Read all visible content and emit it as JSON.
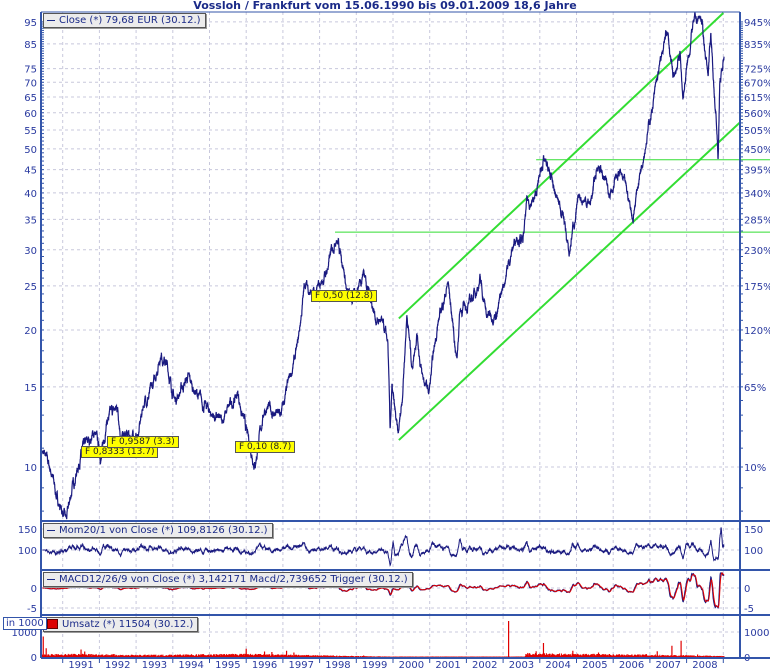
{
  "title": "Vossloh / Frankfurt vom 15.06.1990 bis 09.01.2009 18,6 Jahre",
  "colors": {
    "price": "#1a1a80",
    "channel": "#33dd33",
    "macd_trigger": "#e00000",
    "volume": "#e00000",
    "axis": "#3355aa",
    "grid": "#c8c8dc",
    "annotation_bg": "#ffff00"
  },
  "chart_data": [
    {
      "type": "line",
      "panel": "price",
      "legend": "Close (*) 79,68 EUR (30.12.)",
      "y_scale": "log",
      "ylim": [
        7.2,
        100
      ],
      "xlim": [
        1990.45,
        2009.5
      ],
      "grid": true,
      "left_ticks": [
        "95",
        "85",
        "75",
        "70",
        "65",
        "60",
        "55",
        "50",
        "45",
        "40",
        "35",
        "30",
        "25",
        "20",
        "15",
        "10"
      ],
      "right_ticks": [
        "945%",
        "835%",
        "725%",
        "670%",
        "615%",
        "560%",
        "505%",
        "450%",
        "395%",
        "340%",
        "285%",
        "230%",
        "175%",
        "120%",
        "65%",
        "10%"
      ],
      "series_points": [
        [
          1990.45,
          10.9
        ],
        [
          1990.7,
          9.7
        ],
        [
          1990.85,
          8.5
        ],
        [
          1991.0,
          7.95
        ],
        [
          1991.1,
          7.6
        ],
        [
          1991.25,
          8.9
        ],
        [
          1991.5,
          10.7
        ],
        [
          1991.87,
          11.9
        ],
        [
          1992.05,
          10.5
        ],
        [
          1992.2,
          12.7
        ],
        [
          1992.5,
          13.5
        ],
        [
          1992.6,
          11.6
        ],
        [
          1993.05,
          11.6
        ],
        [
          1993.2,
          13.8
        ],
        [
          1993.45,
          14.8
        ],
        [
          1993.67,
          17.9
        ],
        [
          1993.85,
          16.6
        ],
        [
          1994.05,
          14.0
        ],
        [
          1994.4,
          15.7
        ],
        [
          1994.8,
          13.8
        ],
        [
          1995.3,
          12.5
        ],
        [
          1995.77,
          14.5
        ],
        [
          1996.05,
          11.5
        ],
        [
          1996.24,
          10.2
        ],
        [
          1996.5,
          13.5
        ],
        [
          1996.94,
          12.9
        ],
        [
          1997.14,
          15.0
        ],
        [
          1997.4,
          18.3
        ],
        [
          1997.6,
          25.4
        ],
        [
          1997.87,
          23.6
        ],
        [
          1998.2,
          27.0
        ],
        [
          1998.45,
          32.5
        ],
        [
          1998.64,
          28.2
        ],
        [
          1998.75,
          24.0
        ],
        [
          1998.9,
          23.3
        ],
        [
          1999.2,
          27.1
        ],
        [
          1999.55,
          21.0
        ],
        [
          1999.65,
          21.0
        ],
        [
          1999.86,
          18.7
        ],
        [
          1999.92,
          11.9
        ],
        [
          1999.97,
          14.8
        ],
        [
          2000.14,
          11.5
        ],
        [
          2000.25,
          14.2
        ],
        [
          2000.38,
          21.8
        ],
        [
          2000.52,
          16.6
        ],
        [
          2000.65,
          20.0
        ],
        [
          2000.79,
          15.8
        ],
        [
          2000.98,
          14.5
        ],
        [
          2001.2,
          20.3
        ],
        [
          2001.5,
          25.4
        ],
        [
          2001.74,
          17.2
        ],
        [
          2001.82,
          22.1
        ],
        [
          2002.1,
          22.9
        ],
        [
          2002.37,
          25.8
        ],
        [
          2002.56,
          21.4
        ],
        [
          2002.86,
          22.1
        ],
        [
          2003.1,
          27.1
        ],
        [
          2003.38,
          32.8
        ],
        [
          2003.54,
          31.0
        ],
        [
          2003.65,
          38.0
        ],
        [
          2003.87,
          38.6
        ],
        [
          2004.09,
          47.3
        ],
        [
          2004.25,
          44.2
        ],
        [
          2004.47,
          38.6
        ],
        [
          2004.64,
          36.1
        ],
        [
          2004.8,
          28.9
        ],
        [
          2004.9,
          33.7
        ],
        [
          2005.1,
          39.2
        ],
        [
          2005.38,
          38.0
        ],
        [
          2005.59,
          46.6
        ],
        [
          2005.86,
          40.6
        ],
        [
          2006.19,
          44.2
        ],
        [
          2006.4,
          39.2
        ],
        [
          2006.54,
          35.4
        ],
        [
          2006.68,
          42.1
        ],
        [
          2006.82,
          49.0
        ],
        [
          2007.0,
          57.9
        ],
        [
          2007.22,
          71.9
        ],
        [
          2007.47,
          91.3
        ],
        [
          2007.63,
          70.7
        ],
        [
          2007.82,
          81.0
        ],
        [
          2007.9,
          64.7
        ],
        [
          2008.17,
          93.6
        ],
        [
          2008.39,
          97.0
        ],
        [
          2008.58,
          73.9
        ],
        [
          2008.66,
          86.8
        ],
        [
          2008.83,
          54.1
        ],
        [
          2008.86,
          46.6
        ],
        [
          2008.9,
          68.5
        ],
        [
          2009.02,
          79.68
        ]
      ],
      "trend_channel": {
        "upper": [
          [
            2000.16,
            21.2
          ],
          [
            2009.0,
            99.4
          ]
        ],
        "lower": [
          [
            2000.16,
            11.46
          ],
          [
            2009.47,
            57.3
          ]
        ]
      },
      "horizontal_lines": [
        {
          "value": 32.8,
          "from": 1998.42
        },
        {
          "value": 47.3,
          "from": 2003.9
        }
      ],
      "annotations": [
        {
          "text": "F 0,8333 (13.7)",
          "x": 1991.85
        },
        {
          "text": "F 0,9587 (3.3)",
          "x": 1993.25
        },
        {
          "text": "F 0,10 (8.7)",
          "x": 1996.4
        },
        {
          "text": "F 0,50 (12.8)",
          "x": 1998.25
        }
      ]
    },
    {
      "type": "line",
      "panel": "momentum",
      "legend": "Mom20/1 von Close (*) 109,8126 (30.12.)",
      "ticks": [
        "150",
        "100"
      ],
      "ylim": [
        50,
        165
      ]
    },
    {
      "type": "line",
      "panel": "macd",
      "legend": "MACD12/26/9 von Close (*) 3,142171 Macd/2,739652 Trigger (30.12.)",
      "ticks": [
        "0",
        "-5"
      ],
      "ylim": [
        -6.8,
        4.2
      ]
    },
    {
      "type": "bar",
      "panel": "volume",
      "legend": "Umsatz (*) 11504 (30.12.)",
      "unit_label": "in 1000",
      "ticks": [
        "1000",
        "0"
      ],
      "ylim": [
        0,
        1650
      ],
      "spikes": [
        [
          1990.47,
          820
        ],
        [
          1990.55,
          350
        ],
        [
          1991.5,
          300
        ],
        [
          1991.6,
          220
        ],
        [
          1992.4,
          120
        ],
        [
          1995.4,
          120
        ],
        [
          1996.0,
          330
        ],
        [
          1996.5,
          220
        ],
        [
          1996.7,
          200
        ],
        [
          1997.1,
          250
        ],
        [
          1997.3,
          180
        ],
        [
          1999.2,
          60
        ],
        [
          2003.15,
          1440
        ],
        [
          2003.9,
          230
        ],
        [
          2004.1,
          560
        ],
        [
          2004.9,
          250
        ],
        [
          2005.6,
          180
        ],
        [
          2006.9,
          120
        ],
        [
          2007.2,
          230
        ],
        [
          2007.6,
          450
        ],
        [
          2007.85,
          650
        ],
        [
          2008.3,
          100
        ]
      ],
      "baseline": [
        [
          1990.45,
          80
        ],
        [
          1991.5,
          90
        ],
        [
          1993.0,
          60
        ],
        [
          1996.0,
          90
        ],
        [
          1998.5,
          40
        ],
        [
          1999.8,
          15
        ],
        [
          2003.6,
          15
        ],
        [
          2003.62,
          110
        ],
        [
          2005.0,
          90
        ],
        [
          2007.0,
          70
        ],
        [
          2008.5,
          40
        ],
        [
          2009.02,
          30
        ]
      ]
    }
  ],
  "x_axis": {
    "labels": [
      "1991",
      "1992",
      "1993",
      "1994",
      "1995",
      "1996",
      "1997",
      "1998",
      "1999",
      "2000",
      "2001",
      "2002",
      "2003",
      "2004",
      "2005",
      "2006",
      "2007",
      "2008"
    ]
  }
}
